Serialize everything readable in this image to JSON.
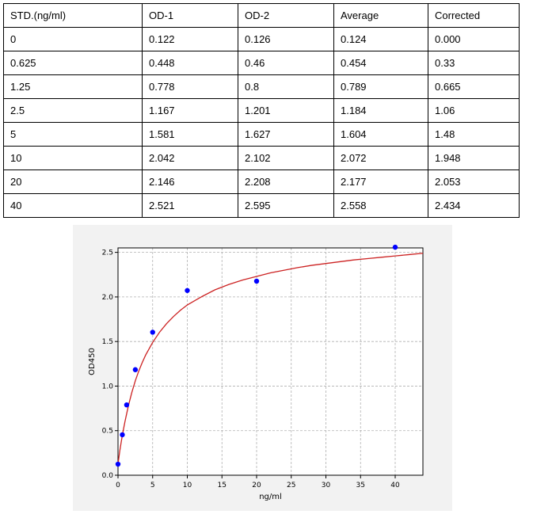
{
  "table": {
    "headers": [
      "STD.(ng/ml)",
      "OD-1",
      "OD-2",
      "Average",
      "Corrected"
    ],
    "rows": [
      [
        "0",
        "0.122",
        "0.126",
        "0.124",
        "0.000"
      ],
      [
        "0.625",
        "0.448",
        "0.46",
        "0.454",
        "0.33"
      ],
      [
        "1.25",
        "0.778",
        "0.8",
        "0.789",
        "0.665"
      ],
      [
        "2.5",
        "1.167",
        "1.201",
        "1.184",
        "1.06"
      ],
      [
        "5",
        "1.581",
        "1.627",
        "1.604",
        "1.48"
      ],
      [
        "10",
        "2.042",
        "2.102",
        "2.072",
        "1.948"
      ],
      [
        "20",
        "2.146",
        "2.208",
        "2.177",
        "2.053"
      ],
      [
        "40",
        "2.521",
        "2.595",
        "2.558",
        "2.434"
      ]
    ]
  },
  "chart_data": {
    "type": "scatter",
    "title": "",
    "xlabel": "ng/ml",
    "ylabel": "OD450",
    "xlim": [
      0,
      44
    ],
    "ylim": [
      0,
      2.55
    ],
    "xticks": [
      0,
      5,
      10,
      15,
      20,
      25,
      30,
      35,
      40
    ],
    "yticks": [
      0.0,
      0.5,
      1.0,
      1.5,
      2.0,
      2.5
    ],
    "xtick_labels": [
      "0",
      "5",
      "10",
      "15",
      "20",
      "25",
      "30",
      "35",
      "40"
    ],
    "ytick_labels": [
      "0.0",
      "0.5",
      "1.0",
      "1.5",
      "2.0",
      "2.5"
    ],
    "grid": true,
    "points": {
      "x": [
        0,
        0.625,
        1.25,
        2.5,
        5,
        10,
        20,
        40
      ],
      "y": [
        0.124,
        0.454,
        0.789,
        1.184,
        1.604,
        2.072,
        2.177,
        2.558
      ],
      "color": "#0000ff"
    },
    "fit_curve": {
      "model": "four-parameter logistic",
      "x": [
        0,
        0.25,
        0.5,
        0.75,
        1,
        1.5,
        2,
        2.5,
        3,
        3.5,
        4,
        5,
        6,
        7,
        8,
        9,
        10,
        12,
        14,
        16,
        18,
        20,
        22,
        24,
        26,
        28,
        30,
        32,
        34,
        36,
        38,
        40,
        42,
        44
      ],
      "y": [
        0.125,
        0.27,
        0.39,
        0.5,
        0.6,
        0.78,
        0.93,
        1.06,
        1.17,
        1.265,
        1.35,
        1.49,
        1.605,
        1.7,
        1.78,
        1.85,
        1.91,
        2.0,
        2.08,
        2.14,
        2.19,
        2.23,
        2.27,
        2.3,
        2.33,
        2.355,
        2.375,
        2.395,
        2.415,
        2.43,
        2.445,
        2.46,
        2.475,
        2.49
      ],
      "color": "#cc2222"
    }
  }
}
